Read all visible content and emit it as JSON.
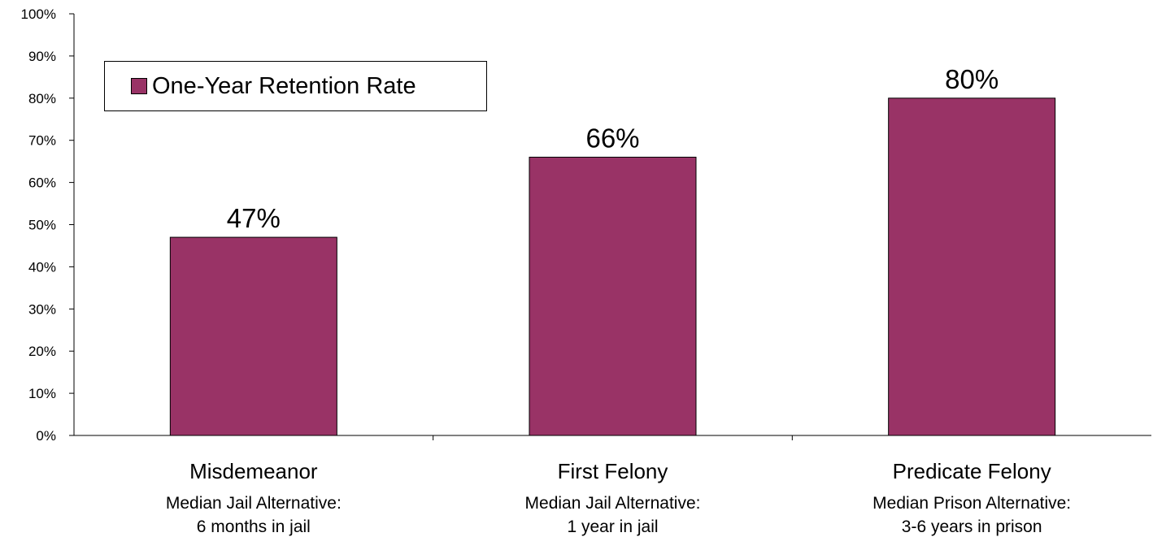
{
  "chart_data": {
    "type": "bar",
    "categories": [
      "Misdemeanor",
      "First Felony",
      "Predicate Felony"
    ],
    "category_sublabels": [
      [
        "Median Jail Alternative:",
        "6 months in jail"
      ],
      [
        "Median Jail Alternative:",
        "1 year in jail"
      ],
      [
        "Median Prison Alternative:",
        "3-6 years in prison"
      ]
    ],
    "series": [
      {
        "name": "One-Year Retention Rate",
        "values": [
          47,
          66,
          80
        ],
        "data_labels": [
          "47%",
          "66%",
          "80%"
        ]
      }
    ],
    "title": "",
    "xlabel": "",
    "ylabel": "",
    "ylim": [
      0,
      100
    ],
    "y_ticks": [
      "0%",
      "10%",
      "20%",
      "30%",
      "40%",
      "50%",
      "60%",
      "70%",
      "80%",
      "90%",
      "100%"
    ],
    "grid": false,
    "legend_position": "top-left",
    "colors": {
      "bar": "#993366",
      "axis": "#000000"
    }
  }
}
